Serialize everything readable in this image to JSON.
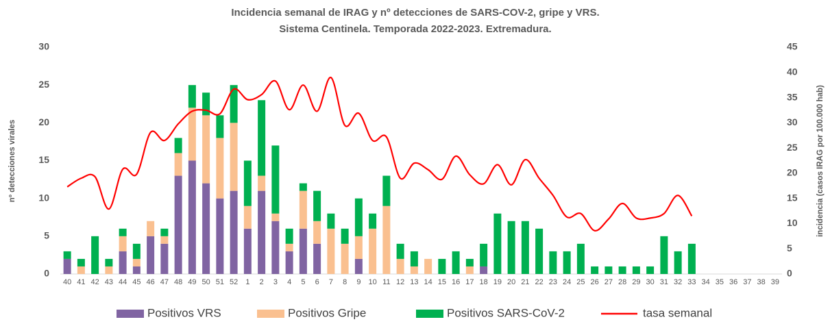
{
  "chart_data": {
    "type": "bar-line",
    "title": "Incidencia semanal de IRAG y nº detecciones de SARS-COV-2, gripe y VRS.",
    "subtitle": "Sistema Centinela. Temporada 2022-2023. Extremadura.",
    "ylabel": "nº detecciones virales",
    "y2label": "incidencia (casos IRAG por 100.000 hab)",
    "categories": [
      "40",
      "41",
      "42",
      "43",
      "44",
      "45",
      "46",
      "47",
      "48",
      "49",
      "50",
      "51",
      "52",
      "1",
      "2",
      "3",
      "4",
      "5",
      "6",
      "7",
      "8",
      "9",
      "10",
      "11",
      "12",
      "13",
      "14",
      "15",
      "16",
      "17",
      "18",
      "19",
      "20",
      "21",
      "22",
      "23",
      "24",
      "25",
      "26",
      "27",
      "28",
      "29",
      "30",
      "31",
      "32",
      "33",
      "34",
      "35",
      "36",
      "37",
      "38",
      "39"
    ],
    "series": [
      {
        "name": "Positivos VRS",
        "color": "#8064a2",
        "kind": "bar",
        "values": [
          2,
          0,
          0,
          0,
          3,
          1,
          5,
          4,
          13,
          15,
          12,
          10,
          11,
          6,
          11,
          7,
          3,
          6,
          4,
          0,
          0,
          2,
          0,
          0,
          0,
          0,
          0,
          0,
          0,
          0,
          1,
          0,
          0,
          0,
          0,
          0,
          0,
          0,
          0,
          0,
          0,
          0,
          0,
          0,
          0,
          0,
          null,
          null,
          null,
          null,
          null,
          null
        ]
      },
      {
        "name": "Positivos Gripe",
        "color": "#fac090",
        "kind": "bar",
        "values": [
          0,
          1,
          0,
          1,
          2,
          1,
          2,
          1,
          3,
          7,
          9,
          8,
          9,
          3,
          2,
          1,
          1,
          5,
          3,
          6,
          4,
          3,
          6,
          9,
          2,
          1,
          2,
          0,
          0,
          1,
          0,
          0,
          0,
          0,
          0,
          0,
          0,
          0,
          0,
          0,
          0,
          0,
          0,
          0,
          0,
          0,
          null,
          null,
          null,
          null,
          null,
          null
        ]
      },
      {
        "name": "Positivos SARS-CoV-2",
        "color": "#00b050",
        "kind": "bar",
        "values": [
          1,
          1,
          5,
          1,
          1,
          2,
          0,
          1,
          2,
          3,
          3,
          3,
          5,
          6,
          10,
          9,
          2,
          1,
          4,
          2,
          2,
          5,
          2,
          4,
          2,
          2,
          0,
          2,
          3,
          1,
          3,
          8,
          7,
          7,
          6,
          3,
          3,
          4,
          1,
          1,
          1,
          1,
          1,
          5,
          3,
          4,
          null,
          null,
          null,
          null,
          null,
          null
        ]
      },
      {
        "name": "tasa semanal",
        "color": "#ff0000",
        "kind": "line",
        "axis": "y2",
        "values": [
          17.3,
          19,
          19.3,
          12.9,
          20.8,
          19.8,
          28.1,
          26.5,
          29.8,
          32.3,
          32.5,
          31.8,
          36.7,
          34.6,
          35.6,
          38.3,
          32.6,
          37.5,
          32.3,
          39,
          29.5,
          31.9,
          26.5,
          27.2,
          19,
          22,
          20.7,
          18.8,
          23.4,
          19.7,
          17.9,
          21.7,
          17.7,
          22.7,
          19,
          15.6,
          11.3,
          12,
          8.6,
          10.9,
          14,
          11.1,
          11.1,
          12,
          15.6,
          11.5,
          null,
          null,
          null,
          null,
          null,
          null
        ]
      }
    ],
    "ylim": [
      0,
      30
    ],
    "yticks": [
      0,
      5,
      10,
      15,
      20,
      25,
      30
    ],
    "y2lim": [
      0,
      45
    ],
    "y2ticks": [
      0,
      5,
      10,
      15,
      20,
      25,
      30,
      35,
      40,
      45
    ],
    "grid": false,
    "legend": "bottom"
  }
}
